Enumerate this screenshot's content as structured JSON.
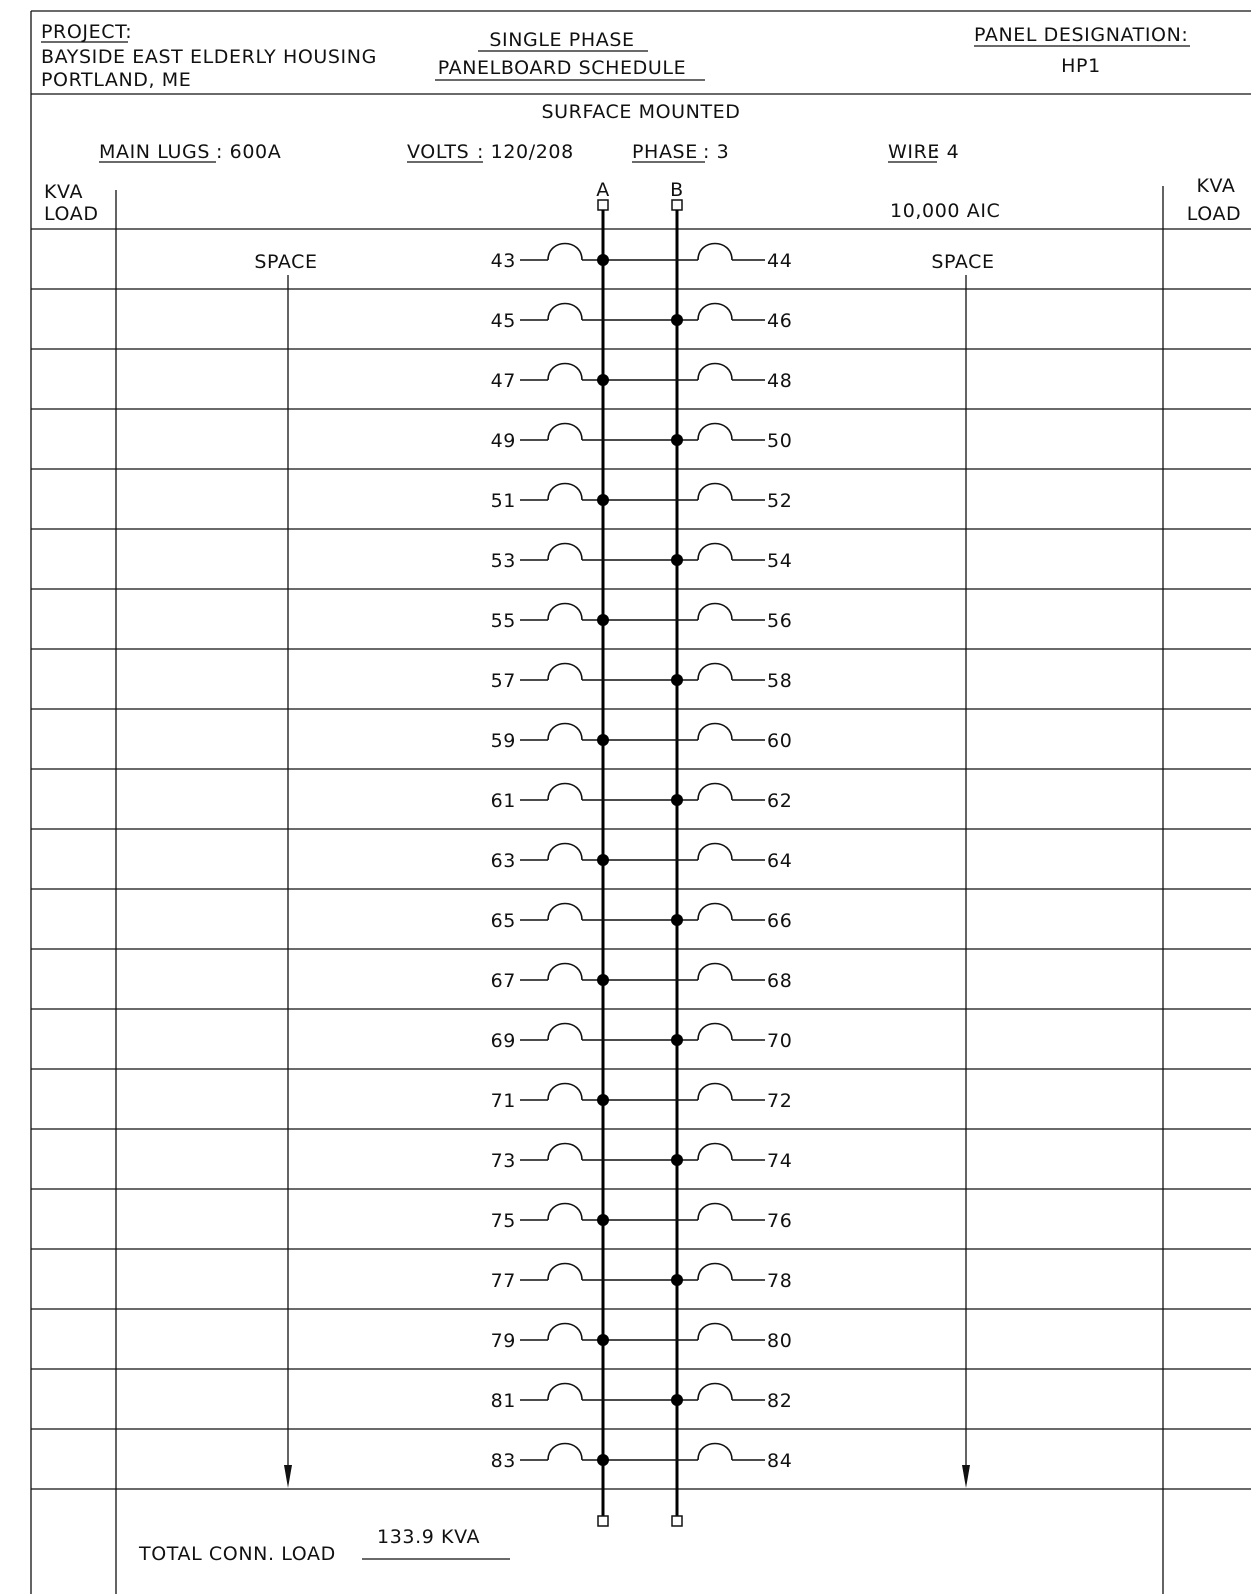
{
  "header": {
    "project_label": "PROJECT:",
    "project_name": "BAYSIDE EAST ELDERLY HOUSING",
    "project_location": "PORTLAND, ME",
    "title_line1": "SINGLE PHASE",
    "title_line2": "PANELBOARD SCHEDULE",
    "designation_label": "PANEL DESIGNATION:",
    "designation_value": "HP1"
  },
  "mounting": "SURFACE MOUNTED",
  "specs": {
    "main_lugs_label": "MAIN LUGS",
    "main_lugs_value": ": 600A",
    "volts_label": "VOLTS",
    "volts_value": ": 120/208",
    "phase_label": "PHASE",
    "phase_value": ": 3",
    "wire_label": "WIRE",
    "wire_value": ": 4",
    "aic": "10,000 AIC"
  },
  "columns": {
    "kva_left_line1": "KVA",
    "kva_left_line2": "LOAD",
    "kva_right_line1": "KVA",
    "kva_right_line2": "LOAD",
    "bus_a": "A",
    "bus_b": "B"
  },
  "left_description": "SPACE",
  "right_description": "SPACE",
  "circuits": [
    {
      "left": "43",
      "right": "44",
      "bus": "A"
    },
    {
      "left": "45",
      "right": "46",
      "bus": "B"
    },
    {
      "left": "47",
      "right": "48",
      "bus": "A"
    },
    {
      "left": "49",
      "right": "50",
      "bus": "B"
    },
    {
      "left": "51",
      "right": "52",
      "bus": "A"
    },
    {
      "left": "53",
      "right": "54",
      "bus": "B"
    },
    {
      "left": "55",
      "right": "56",
      "bus": "A"
    },
    {
      "left": "57",
      "right": "58",
      "bus": "B"
    },
    {
      "left": "59",
      "right": "60",
      "bus": "A"
    },
    {
      "left": "61",
      "right": "62",
      "bus": "B"
    },
    {
      "left": "63",
      "right": "64",
      "bus": "A"
    },
    {
      "left": "65",
      "right": "66",
      "bus": "B"
    },
    {
      "left": "67",
      "right": "68",
      "bus": "A"
    },
    {
      "left": "69",
      "right": "70",
      "bus": "B"
    },
    {
      "left": "71",
      "right": "72",
      "bus": "A"
    },
    {
      "left": "73",
      "right": "74",
      "bus": "B"
    },
    {
      "left": "75",
      "right": "76",
      "bus": "A"
    },
    {
      "left": "77",
      "right": "78",
      "bus": "B"
    },
    {
      "left": "79",
      "right": "80",
      "bus": "A"
    },
    {
      "left": "81",
      "right": "82",
      "bus": "B"
    },
    {
      "left": "83",
      "right": "84",
      "bus": "A"
    }
  ],
  "total": {
    "label": "TOTAL CONN. LOAD",
    "value": "133.9 KVA"
  }
}
